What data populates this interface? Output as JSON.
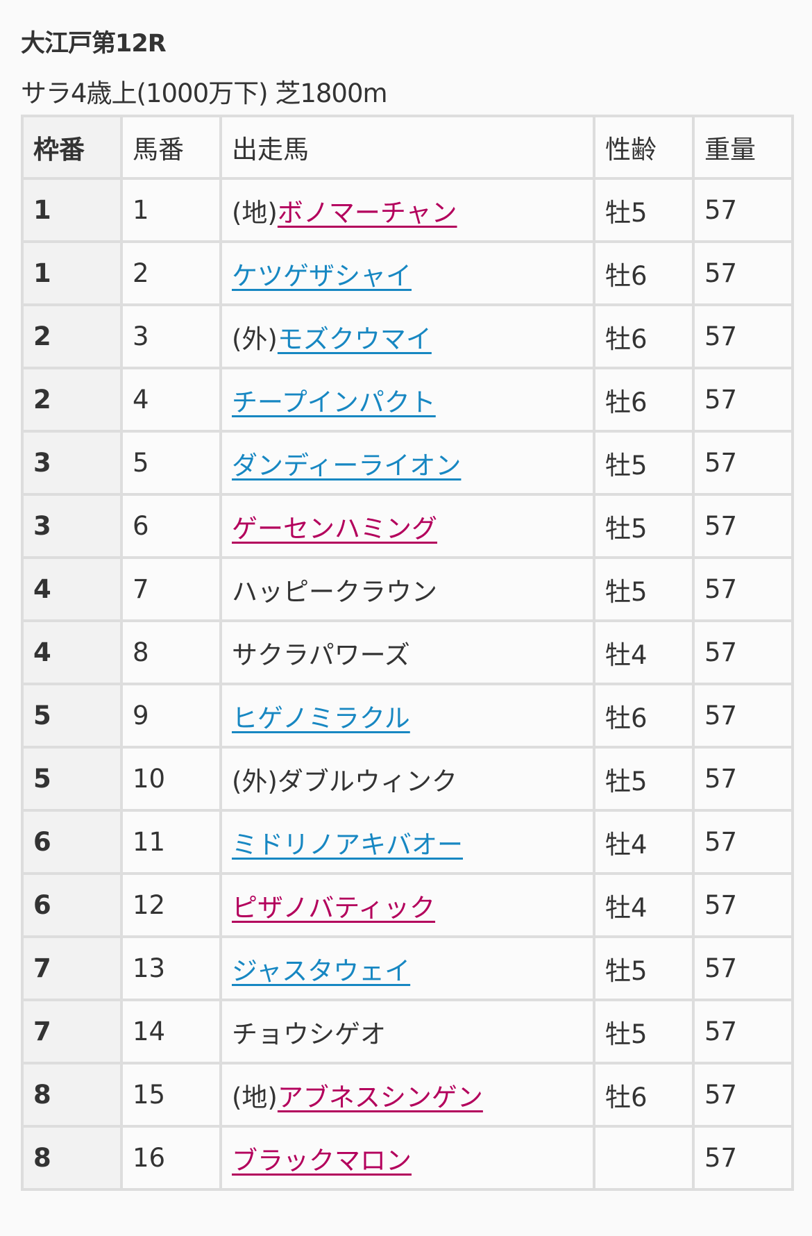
{
  "race": {
    "title": "大江戸第12R",
    "subtitle": "サラ4歳上(1000万下) 芝1800m"
  },
  "colors": {
    "pink_link": "#b3005c",
    "blue_link": "#1787c2",
    "text": "#333333",
    "border": "#dddddd"
  },
  "headers": [
    "枠番",
    "馬番",
    "出走馬",
    "性齢",
    "重量"
  ],
  "rows": [
    {
      "waku": "1",
      "uma": "1",
      "prefix": "(地)",
      "name": "ボノマーチャン",
      "link": "pink",
      "sex_age": "牡5",
      "weight": "57"
    },
    {
      "waku": "1",
      "uma": "2",
      "prefix": "",
      "name": "ケツゲザシャイ",
      "link": "blue",
      "sex_age": "牡6",
      "weight": "57"
    },
    {
      "waku": "2",
      "uma": "3",
      "prefix": "(外)",
      "name": "モズクウマイ",
      "link": "blue",
      "sex_age": "牡6",
      "weight": "57"
    },
    {
      "waku": "2",
      "uma": "4",
      "prefix": "",
      "name": "チープインパクト",
      "link": "blue",
      "sex_age": "牡6",
      "weight": "57"
    },
    {
      "waku": "3",
      "uma": "5",
      "prefix": "",
      "name": "ダンディーライオン",
      "link": "blue",
      "sex_age": "牡5",
      "weight": "57"
    },
    {
      "waku": "3",
      "uma": "6",
      "prefix": "",
      "name": "ゲーセンハミング",
      "link": "pink",
      "sex_age": "牡5",
      "weight": "57"
    },
    {
      "waku": "4",
      "uma": "7",
      "prefix": "",
      "name": "ハッピークラウン",
      "link": "plain",
      "sex_age": "牡5",
      "weight": "57"
    },
    {
      "waku": "4",
      "uma": "8",
      "prefix": "",
      "name": "サクラパワーズ",
      "link": "plain",
      "sex_age": "牡4",
      "weight": "57"
    },
    {
      "waku": "5",
      "uma": "9",
      "prefix": "",
      "name": "ヒゲノミラクル",
      "link": "blue",
      "sex_age": "牡6",
      "weight": "57"
    },
    {
      "waku": "5",
      "uma": "10",
      "prefix": "(外)",
      "name": "ダブルウィンク",
      "link": "plain",
      "sex_age": "牡5",
      "weight": "57"
    },
    {
      "waku": "6",
      "uma": "11",
      "prefix": "",
      "name": "ミドリノアキバオー",
      "link": "blue",
      "sex_age": "牡4",
      "weight": "57"
    },
    {
      "waku": "6",
      "uma": "12",
      "prefix": "",
      "name": "ピザノバティック",
      "link": "pink",
      "sex_age": "牡4",
      "weight": "57"
    },
    {
      "waku": "7",
      "uma": "13",
      "prefix": "",
      "name": "ジャスタウェイ",
      "link": "blue",
      "sex_age": "牡5",
      "weight": "57"
    },
    {
      "waku": "7",
      "uma": "14",
      "prefix": "",
      "name": "チョウシゲオ",
      "link": "plain",
      "sex_age": "牡5",
      "weight": "57"
    },
    {
      "waku": "8",
      "uma": "15",
      "prefix": "(地)",
      "name": "アブネスシンゲン",
      "link": "pink",
      "sex_age": "牡6",
      "weight": "57"
    },
    {
      "waku": "8",
      "uma": "16",
      "prefix": "",
      "name": "ブラックマロン",
      "link": "pink",
      "sex_age": "",
      "weight": "57"
    }
  ]
}
